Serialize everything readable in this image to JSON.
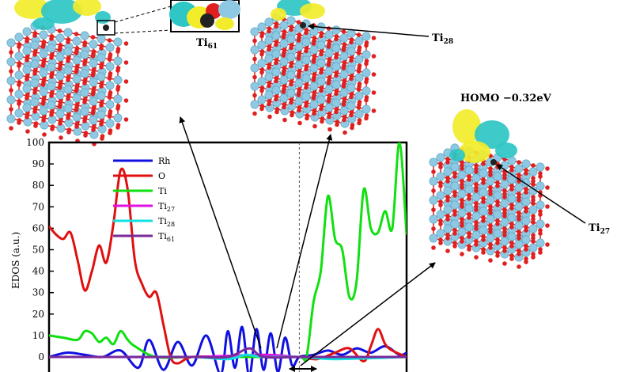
{
  "labels": {
    "ti61": "Ti",
    "ti61_sub": "61",
    "ti28": "Ti",
    "ti28_sub": "28",
    "ti27": "Ti",
    "ti27_sub": "27",
    "homo": "HOMO −0.32eV"
  },
  "colors": {
    "oxygen": "#e02020",
    "titanium": "#8ec9e3",
    "orbital_yellow": "#f2ec2a",
    "orbital_cyan": "#2fc6c6"
  },
  "chart_data": {
    "type": "line",
    "title": "",
    "xlabel": "",
    "ylabel": "EDOS  (a.u.)",
    "ylim": [
      0,
      100
    ],
    "yticks": [
      0,
      10,
      20,
      30,
      40,
      50,
      60,
      70,
      80,
      90,
      100
    ],
    "xlim": [
      0,
      100
    ],
    "fermi_x": 70,
    "legend": "top-left",
    "series": [
      {
        "name": "Rh",
        "color": "#1010e0",
        "x": [
          0,
          5,
          10,
          15,
          20,
          25,
          28,
          32,
          36,
          40,
          44,
          48,
          50,
          52,
          54,
          56,
          58,
          60,
          62,
          64,
          66,
          68,
          70,
          74,
          78,
          82,
          86,
          90,
          94,
          98,
          100
        ],
        "y": [
          0,
          2,
          1,
          0,
          3,
          -5,
          8,
          -6,
          7,
          -4,
          10,
          -8,
          12,
          -5,
          14,
          -9,
          13,
          -6,
          11,
          -7,
          9,
          -4,
          0,
          1,
          3,
          1,
          4,
          2,
          5,
          1,
          2
        ]
      },
      {
        "name": "O",
        "color": "#e01010",
        "x": [
          0,
          2,
          4,
          6,
          8,
          10,
          12,
          14,
          16,
          18,
          20,
          22,
          24,
          26,
          28,
          30,
          32,
          34,
          36,
          40,
          50,
          60,
          70,
          75,
          80,
          84,
          88,
          90,
          92,
          94,
          96,
          100
        ],
        "y": [
          61,
          57,
          55,
          58,
          45,
          31,
          40,
          52,
          44,
          62,
          87,
          78,
          45,
          34,
          28,
          30,
          15,
          0,
          -3,
          0,
          0,
          0,
          0,
          -1,
          2,
          4,
          -2,
          5,
          13,
          6,
          3,
          0
        ]
      },
      {
        "name": "Ti",
        "color": "#10e010",
        "x": [
          0,
          4,
          8,
          10,
          12,
          14,
          16,
          18,
          20,
          22,
          24,
          30,
          40,
          50,
          60,
          70,
          72,
          74,
          76,
          78,
          80,
          82,
          84,
          86,
          88,
          90,
          92,
          94,
          96,
          98,
          100
        ],
        "y": [
          10,
          9,
          8,
          12,
          11,
          7,
          9,
          6,
          12,
          8,
          5,
          0,
          0,
          0,
          0,
          0,
          0,
          26,
          40,
          75,
          55,
          50,
          28,
          35,
          78,
          60,
          58,
          68,
          60,
          100,
          57
        ]
      },
      {
        "name": "Ti27",
        "color": "#e010e0",
        "x": [
          0,
          20,
          40,
          60,
          70,
          80,
          100
        ],
        "y": [
          0,
          0,
          0,
          1,
          0,
          0,
          0
        ]
      },
      {
        "name": "Ti28",
        "color": "#10e0e0",
        "x": [
          0,
          20,
          40,
          50,
          55,
          60,
          70,
          80,
          100
        ],
        "y": [
          0,
          0,
          0,
          -1,
          1,
          0,
          0,
          -1,
          0
        ]
      },
      {
        "name": "Ti61",
        "color": "#7a2a9a",
        "x": [
          0,
          20,
          40,
          50,
          56,
          60,
          70,
          80,
          100
        ],
        "y": [
          0,
          0,
          0,
          0,
          4,
          0,
          0,
          0,
          0
        ]
      }
    ]
  }
}
